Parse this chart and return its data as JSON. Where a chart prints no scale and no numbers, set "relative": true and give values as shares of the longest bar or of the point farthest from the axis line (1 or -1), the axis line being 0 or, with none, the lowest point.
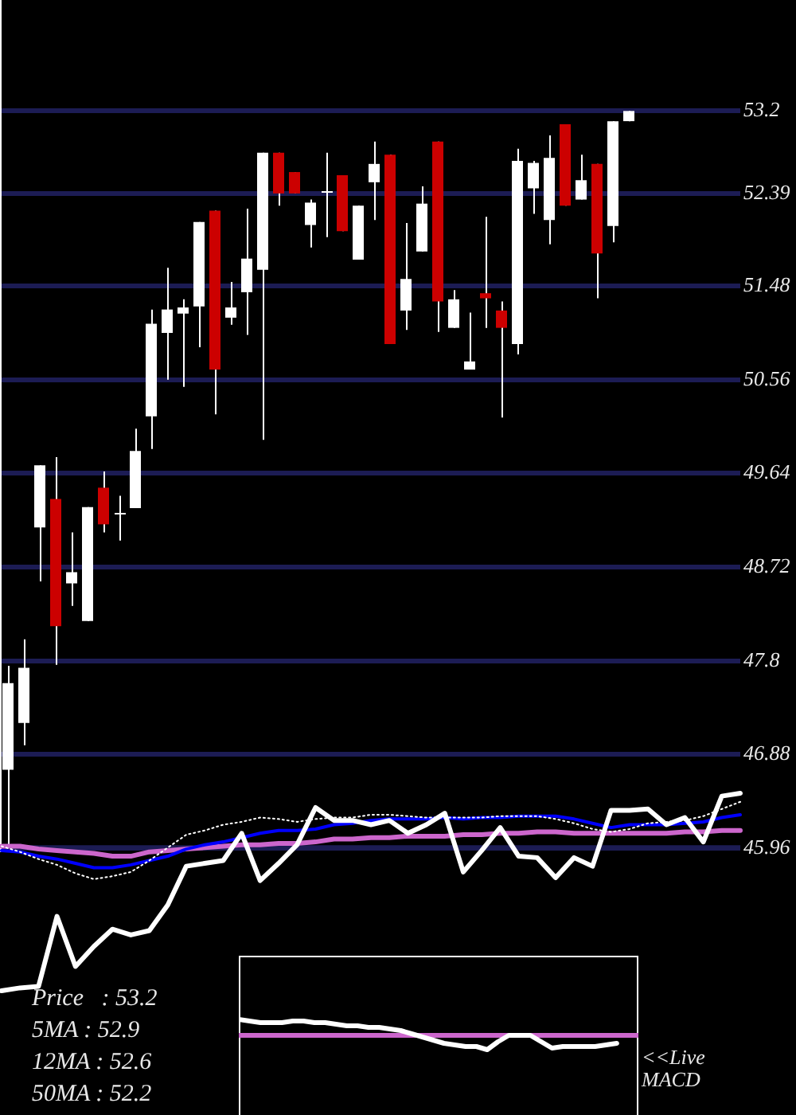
{
  "chart_data": [
    {
      "type": "candlestick",
      "categories": [
        null,
        null,
        null,
        null,
        null,
        null,
        null,
        null,
        null,
        null,
        null,
        null,
        null,
        null,
        null,
        null,
        null,
        null,
        null,
        null,
        null,
        null,
        null,
        null,
        null,
        null,
        null,
        null,
        null,
        null,
        null,
        null,
        null,
        null,
        null,
        null,
        null,
        null,
        null,
        null
      ],
      "ohlc": [
        [
          46.73,
          47.75,
          45.96,
          47.58
        ],
        [
          47.19,
          48.01,
          46.97,
          47.73
        ],
        [
          49.11,
          49.72,
          48.58,
          49.72
        ],
        [
          49.39,
          49.8,
          47.76,
          48.14
        ],
        [
          48.56,
          49.06,
          48.34,
          48.67
        ],
        [
          48.19,
          49.31,
          48.19,
          49.31
        ],
        [
          49.5,
          49.66,
          49.06,
          49.14
        ],
        [
          49.25,
          49.42,
          48.98,
          49.25
        ],
        [
          49.3,
          50.08,
          49.3,
          49.86
        ],
        [
          50.2,
          51.25,
          49.88,
          51.11
        ],
        [
          51.02,
          51.66,
          50.56,
          51.25
        ],
        [
          51.21,
          51.35,
          50.49,
          51.27
        ],
        [
          51.28,
          52.11,
          50.88,
          52.11
        ],
        [
          52.22,
          52.22,
          50.22,
          50.66
        ],
        [
          51.17,
          51.52,
          51.1,
          51.27
        ],
        [
          51.42,
          52.24,
          51,
          51.75
        ],
        [
          51.64,
          52.79,
          49.97,
          52.79
        ],
        [
          52.79,
          52.79,
          52.27,
          52.39
        ],
        [
          52.6,
          52.6,
          52.39,
          52.39
        ],
        [
          52.08,
          52.33,
          51.86,
          52.3
        ],
        [
          52.41,
          52.79,
          51.96,
          52.41
        ],
        [
          52.57,
          52.57,
          52.02,
          52.02
        ],
        [
          51.74,
          52.27,
          51.74,
          52.27
        ],
        [
          52.5,
          52.9,
          52.13,
          52.68
        ],
        [
          52.77,
          52.77,
          50.91,
          50.91
        ],
        [
          51.24,
          52.1,
          51.05,
          51.55
        ],
        [
          51.82,
          52.46,
          51.82,
          52.29
        ],
        [
          52.9,
          52.9,
          51.03,
          51.33
        ],
        [
          51.07,
          51.44,
          51.07,
          51.35
        ],
        [
          50.66,
          51.22,
          50.66,
          50.74
        ],
        [
          51.41,
          52.16,
          51.07,
          51.36
        ],
        [
          51.24,
          51.33,
          50.19,
          51.07
        ],
        [
          50.91,
          52.83,
          50.81,
          52.71
        ],
        [
          52.44,
          52.71,
          52.19,
          52.69
        ],
        [
          52.13,
          52.96,
          51.89,
          52.74
        ],
        [
          53.07,
          53.07,
          52.27,
          52.27
        ],
        [
          52.33,
          52.77,
          52.33,
          52.52
        ],
        [
          52.68,
          52.68,
          51.36,
          51.8
        ],
        [
          52.07,
          53.1,
          51.91,
          53.1
        ],
        [
          53.1,
          53.2,
          53.1,
          53.2
        ]
      ],
      "colors": [
        "#ffffff",
        "#ffffff",
        "#ffffff",
        "#cc0000",
        "#ffffff",
        "#ffffff",
        "#cc0000",
        "#ffffff",
        "#ffffff",
        "#ffffff",
        "#ffffff",
        "#ffffff",
        "#ffffff",
        "#cc0000",
        "#ffffff",
        "#ffffff",
        "#ffffff",
        "#cc0000",
        "#cc0000",
        "#ffffff",
        "#ffffff",
        "#cc0000",
        "#ffffff",
        "#ffffff",
        "#cc0000",
        "#ffffff",
        "#ffffff",
        "#cc0000",
        "#ffffff",
        "#ffffff",
        "#cc0000",
        "#cc0000",
        "#ffffff",
        "#ffffff",
        "#ffffff",
        "#cc0000",
        "#ffffff",
        "#cc0000",
        "#ffffff",
        "#ffffff"
      ],
      "ylim": [
        45.92,
        54.29
      ],
      "yticks": [
        45.96,
        46.88,
        47.8,
        48.72,
        49.64,
        50.56,
        51.48,
        52.39,
        53.2
      ],
      "grid": "y",
      "tick_labels": "y",
      "annotations": [
        "Price   : 53.2",
        "5MA : 52.9",
        "12MA : 52.6",
        "50MA : 52.2"
      ]
    },
    {
      "type": "line",
      "relative": true,
      "tick_labels": false,
      "categories": [
        null,
        null,
        null,
        null,
        null,
        null,
        null,
        null,
        null,
        null,
        null,
        null,
        null,
        null,
        null,
        null,
        null,
        null,
        null,
        null,
        null,
        null,
        null,
        null,
        null,
        null,
        null,
        null,
        null,
        null,
        null,
        null,
        null,
        null,
        null,
        null,
        null,
        null,
        null,
        null,
        null
      ],
      "series": [
        {
          "color": "#ffffff",
          "values": [
            -1,
            -0.98,
            -0.97,
            -0.48,
            -0.83,
            -0.69,
            -0.57,
            -0.61,
            -0.58,
            -0.4,
            -0.13,
            -0.11,
            -0.09,
            0.1,
            -0.23,
            -0.11,
            0.02,
            0.28,
            0.19,
            0.19,
            0.16,
            0.19,
            0.1,
            0.16,
            0.24,
            -0.17,
            -0.02,
            0.14,
            -0.06,
            -0.07,
            -0.21,
            -0.07,
            -0.13,
            0.26,
            0.26,
            0.27,
            0.16,
            0.21,
            0.04,
            0.36,
            0.38
          ]
        },
        {
          "color": "#ffffff",
          "line_style": "dotted",
          "values": [
            0.01,
            -0.03,
            -0.08,
            -0.12,
            -0.18,
            -0.22,
            -0.2,
            -0.17,
            -0.09,
            0,
            0.09,
            0.12,
            0.16,
            0.18,
            0.21,
            0.2,
            0.18,
            0.2,
            0.21,
            0.21,
            0.23,
            0.23,
            0.22,
            0.21,
            0.21,
            0.21,
            0.21,
            0.22,
            0.22,
            0.22,
            0.2,
            0.17,
            0.13,
            0.11,
            0.13,
            0.17,
            0.18,
            0.19,
            0.22,
            0.27,
            0.32
          ]
        },
        {
          "color": "#0000ff",
          "values": [
            -0.02,
            -0.03,
            -0.06,
            -0.08,
            -0.11,
            -0.14,
            -0.14,
            -0.12,
            -0.09,
            -0.06,
            -0.01,
            0.02,
            0.04,
            0.07,
            0.1,
            0.12,
            0.12,
            0.13,
            0.16,
            0.17,
            0.19,
            0.2,
            0.2,
            0.2,
            0.21,
            0.2,
            0.21,
            0.21,
            0.22,
            0.22,
            0.22,
            0.2,
            0.17,
            0.14,
            0.16,
            0.16,
            0.16,
            0.17,
            0.18,
            0.21,
            0.23
          ]
        },
        {
          "color": "#cc66cc",
          "values": [
            0.01,
            0.01,
            -0.01,
            -0.02,
            -0.03,
            -0.04,
            -0.06,
            -0.06,
            -0.03,
            -0.02,
            -0.01,
            0,
            0.01,
            0.02,
            0.02,
            0.03,
            0.03,
            0.04,
            0.06,
            0.06,
            0.07,
            0.07,
            0.08,
            0.08,
            0.08,
            0.09,
            0.09,
            0.1,
            0.1,
            0.11,
            0.11,
            0.1,
            0.1,
            0.1,
            0.1,
            0.1,
            0.1,
            0.11,
            0.11,
            0.12,
            0.12
          ]
        }
      ],
      "ref_lines": [
        {
          "axis": "y",
          "value": 0,
          "color": "#1c1c54"
        }
      ]
    },
    {
      "type": "line",
      "relative": true,
      "tick_labels": false,
      "categories": [
        null,
        null,
        null,
        null,
        null,
        null,
        null,
        null,
        null,
        null,
        null,
        null,
        null,
        null,
        null,
        null,
        null,
        null,
        null,
        null,
        null,
        null,
        null,
        null,
        null,
        null,
        null,
        null,
        null,
        null,
        null,
        null,
        null,
        null,
        null,
        null,
        null,
        null
      ],
      "series": [
        {
          "color": "#ffffff",
          "values": [
            1,
            0.9,
            0.8,
            0.8,
            0.8,
            0.9,
            0.9,
            0.8,
            0.8,
            0.7,
            0.6,
            0.6,
            0.5,
            0.5,
            0.4,
            0.3,
            0.1,
            -0.1,
            -0.3,
            -0.5,
            -0.6,
            -0.7,
            -0.7,
            -0.9,
            -0.4,
            0,
            0,
            0,
            -0.4,
            -0.8,
            -0.7,
            -0.7,
            -0.7,
            -0.7,
            -0.6,
            -0.5,
            null,
            null
          ]
        }
      ],
      "ref_lines": [
        {
          "axis": "y",
          "value": 0,
          "color": "#cc66cc"
        }
      ],
      "annotations": [
        "<<Live MACD"
      ]
    }
  ]
}
